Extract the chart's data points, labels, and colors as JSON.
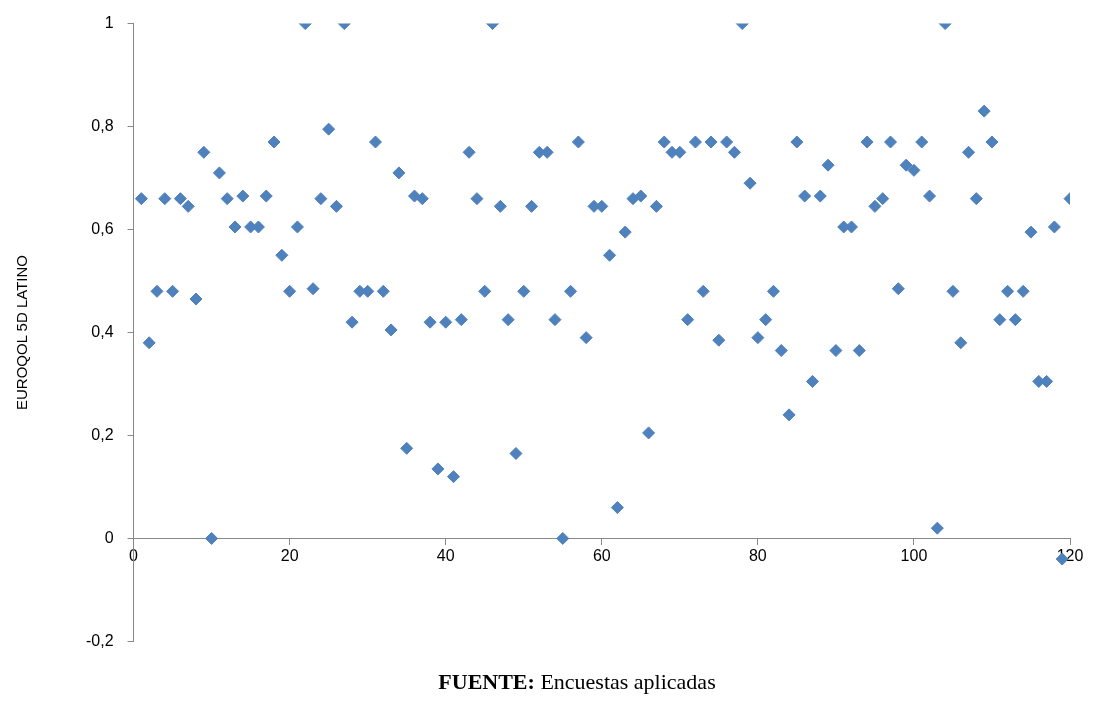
{
  "chart_data": {
    "type": "scatter",
    "ylabel": "EUROQOL 5D LATINO",
    "annotations": [
      "FUENTE: Encuestas aplicadas"
    ],
    "xlim": [
      0,
      120
    ],
    "xticks": [
      0,
      20,
      40,
      60,
      80,
      100,
      120
    ],
    "ylim": [
      -0.2,
      1
    ],
    "yticks": [
      {
        "value": -0.2,
        "label": "-0,2"
      },
      0,
      {
        "value": 0.2,
        "label": "0,2"
      },
      {
        "value": 0.4,
        "label": "0,4"
      },
      {
        "value": 0.6,
        "label": "0,6"
      },
      {
        "value": 0.8,
        "label": "0,8"
      },
      1
    ],
    "grid": false,
    "legend": false,
    "marker": "diamond",
    "series": [
      {
        "color": "#4f81bd",
        "x": [
          1,
          2,
          3,
          4,
          5,
          6,
          7,
          8,
          9,
          10,
          11,
          12,
          13,
          14,
          15,
          16,
          17,
          18,
          19,
          20,
          21,
          22,
          23,
          24,
          25,
          26,
          27,
          28,
          29,
          30,
          31,
          32,
          33,
          34,
          35,
          36,
          37,
          38,
          39,
          40,
          41,
          42,
          43,
          44,
          45,
          46,
          47,
          48,
          49,
          50,
          51,
          52,
          53,
          54,
          55,
          56,
          57,
          58,
          59,
          60,
          61,
          62,
          63,
          64,
          65,
          66,
          67,
          68,
          69,
          70,
          71,
          72,
          73,
          74,
          75,
          76,
          77,
          78,
          79,
          80,
          81,
          82,
          83,
          84,
          85,
          86,
          87,
          88,
          89,
          90,
          91,
          92,
          93,
          94,
          95,
          96,
          97,
          98,
          99,
          100,
          101,
          102,
          103,
          104,
          105,
          106,
          107,
          108,
          109,
          110,
          111,
          112,
          113,
          114,
          115,
          116,
          117,
          118,
          119,
          120
        ],
        "values": [
          0.66,
          0.38,
          0.48,
          0.66,
          0.48,
          0.66,
          0.645,
          0.465,
          0.75,
          0,
          0.71,
          0.66,
          0.605,
          0.665,
          0.605,
          0.605,
          0.665,
          0.77,
          0.55,
          0.48,
          0.605,
          1,
          0.485,
          0.66,
          0.795,
          0.645,
          1,
          0.42,
          0.48,
          0.48,
          0.77,
          0.48,
          0.405,
          0.71,
          0.175,
          0.665,
          0.66,
          0.42,
          0.135,
          0.42,
          0.12,
          0.425,
          0.75,
          0.66,
          0.48,
          1,
          0.645,
          0.425,
          0.165,
          0.48,
          0.645,
          0.75,
          0.75,
          0.425,
          0,
          0.48,
          0.77,
          0.39,
          0.645,
          0.645,
          0.55,
          0.06,
          0.595,
          0.66,
          0.665,
          0.205,
          0.645,
          0.77,
          0.75,
          0.75,
          0.425,
          0.77,
          0.48,
          0.77,
          0.385,
          0.77,
          0.75,
          1,
          0.69,
          0.39,
          0.425,
          0.48,
          0.365,
          0.24,
          0.77,
          0.665,
          0.305,
          0.665,
          0.725,
          0.365,
          0.605,
          0.605,
          0.365,
          0.77,
          0.645,
          0.66,
          0.77,
          0.485,
          0.725,
          0.715,
          0.77,
          0.665,
          0.02,
          1,
          0.48,
          0.38,
          0.75,
          0.66,
          0.83,
          0.77,
          0.425,
          0.48,
          0.425,
          0.48,
          0.595,
          0.305,
          0.305,
          0.605,
          -0.04,
          0.66
        ]
      }
    ]
  }
}
